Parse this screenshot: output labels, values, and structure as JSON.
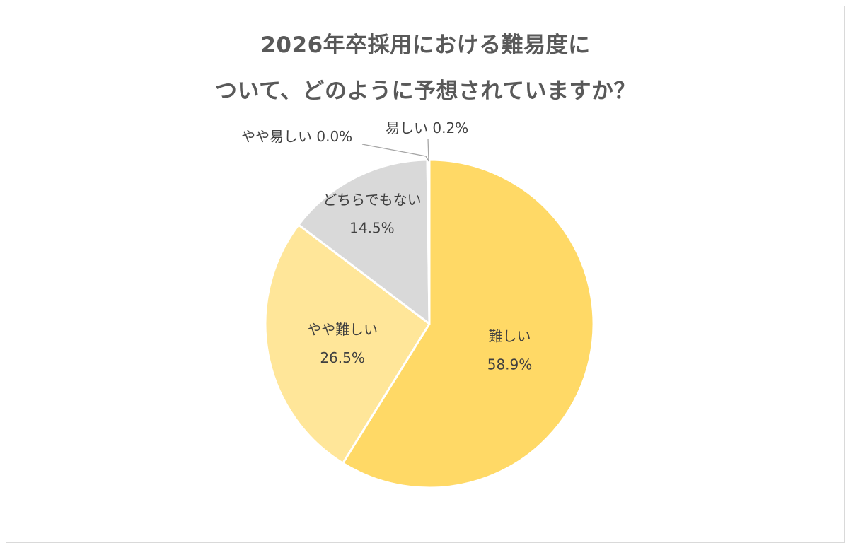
{
  "chart_data": {
    "type": "pie",
    "title": [
      "2026年卒採用における難易度に",
      "ついて、どのように予想されていますか？"
    ],
    "slices": [
      {
        "label": "難しい",
        "value": 58.9,
        "display": "58.9%",
        "color": "#ffd966"
      },
      {
        "label": "やや難しい",
        "value": 26.5,
        "display": "26.5%",
        "color": "#ffe699"
      },
      {
        "label": "どちらでもない",
        "value": 14.5,
        "display": "14.5%",
        "color": "#d9d9d9"
      },
      {
        "label": "やや易しい",
        "value": 0.0,
        "display": "0.0%",
        "color": "#bfbfbf"
      },
      {
        "label": "易しい",
        "value": 0.2,
        "display": "0.2%",
        "color": "#a6a6a6"
      }
    ],
    "start_direction": "top",
    "clockwise": true,
    "legend": "none"
  }
}
